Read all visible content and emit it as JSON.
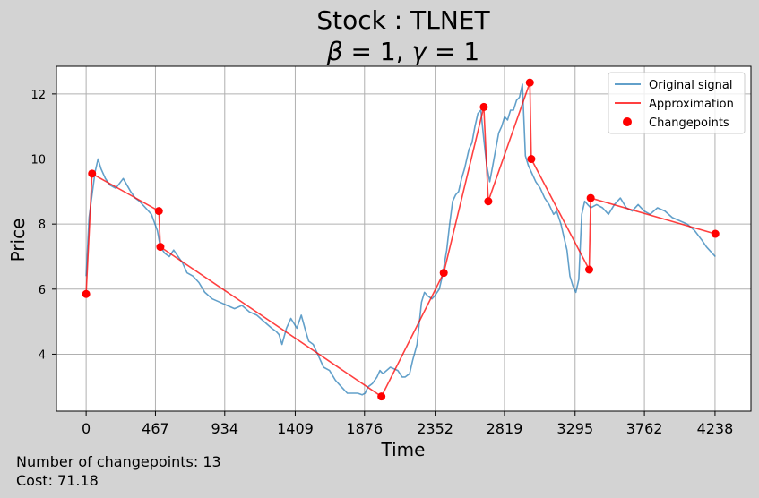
{
  "chart_data": {
    "type": "line",
    "title": "Stock : TLNET",
    "subtitle_beta": "1",
    "subtitle_gamma": "1",
    "xlabel": "Time",
    "ylabel": "Price",
    "xlim": [
      -200,
      4480
    ],
    "ylim": [
      2.25,
      12.85
    ],
    "xticks": [
      0,
      467,
      934,
      1409,
      1876,
      2352,
      2819,
      3295,
      3762,
      4238
    ],
    "yticks": [
      4,
      6,
      8,
      10,
      12
    ],
    "grid": true,
    "legend_position": "upper-right",
    "legend": [
      "Original signal",
      "Approximation",
      "Changepoints"
    ],
    "colors": {
      "signal": "#1f77b4",
      "approximation": "#ff0000",
      "changepoints": "#ff0000",
      "background": "#d3d3d3",
      "plot_background": "#ffffff",
      "grid": "#b0b0b0"
    },
    "series": [
      {
        "name": "Original signal",
        "x": [
          0,
          20,
          40,
          60,
          80,
          100,
          130,
          160,
          200,
          250,
          300,
          330,
          360,
          400,
          440,
          480,
          500,
          530,
          560,
          590,
          620,
          650,
          680,
          720,
          760,
          800,
          850,
          900,
          950,
          1000,
          1050,
          1100,
          1150,
          1200,
          1250,
          1280,
          1300,
          1320,
          1350,
          1380,
          1420,
          1450,
          1480,
          1500,
          1530,
          1560,
          1600,
          1640,
          1680,
          1720,
          1760,
          1800,
          1830,
          1860,
          1880,
          1900,
          1930,
          1960,
          1980,
          2000,
          2050,
          2100,
          2130,
          2150,
          2180,
          2200,
          2230,
          2260,
          2280,
          2300,
          2330,
          2350,
          2380,
          2400,
          2430,
          2450,
          2470,
          2490,
          2510,
          2530,
          2550,
          2580,
          2600,
          2620,
          2640,
          2660,
          2680,
          2700,
          2720,
          2740,
          2760,
          2780,
          2800,
          2820,
          2840,
          2860,
          2880,
          2900,
          2920,
          2940,
          2960,
          2980,
          3000,
          3030,
          3060,
          3090,
          3120,
          3150,
          3170,
          3200,
          3220,
          3240,
          3260,
          3280,
          3300,
          3320,
          3340,
          3360,
          3380,
          3400,
          3440,
          3480,
          3520,
          3560,
          3600,
          3640,
          3680,
          3720,
          3760,
          3800,
          3850,
          3900,
          3950,
          4000,
          4050,
          4100,
          4150,
          4180,
          4200,
          4220,
          4240
        ],
        "values": [
          6.4,
          8.2,
          8.9,
          9.6,
          10.0,
          9.7,
          9.4,
          9.2,
          9.1,
          9.4,
          9.0,
          8.8,
          8.7,
          8.5,
          8.3,
          7.8,
          7.3,
          7.1,
          7.0,
          7.2,
          7.0,
          6.8,
          6.5,
          6.4,
          6.2,
          5.9,
          5.7,
          5.6,
          5.5,
          5.4,
          5.5,
          5.3,
          5.2,
          5.0,
          4.8,
          4.7,
          4.6,
          4.3,
          4.8,
          5.1,
          4.8,
          5.2,
          4.7,
          4.4,
          4.3,
          4.0,
          3.6,
          3.5,
          3.2,
          3.0,
          2.8,
          2.8,
          2.8,
          2.75,
          2.8,
          3.0,
          3.1,
          3.3,
          3.5,
          3.4,
          3.6,
          3.5,
          3.3,
          3.3,
          3.4,
          3.8,
          4.3,
          5.6,
          5.9,
          5.8,
          5.7,
          5.8,
          6.0,
          6.4,
          7.2,
          8.0,
          8.7,
          8.9,
          9.0,
          9.4,
          9.7,
          10.3,
          10.5,
          11.0,
          11.4,
          11.5,
          10.6,
          9.8,
          9.3,
          9.8,
          10.3,
          10.8,
          11.0,
          11.3,
          11.2,
          11.5,
          11.5,
          11.8,
          11.9,
          12.3,
          10.1,
          9.8,
          9.6,
          9.3,
          9.1,
          8.8,
          8.6,
          8.3,
          8.4,
          8.0,
          7.6,
          7.2,
          6.4,
          6.1,
          5.9,
          6.3,
          8.3,
          8.7,
          8.6,
          8.5,
          8.6,
          8.5,
          8.3,
          8.6,
          8.8,
          8.5,
          8.4,
          8.6,
          8.4,
          8.3,
          8.5,
          8.4,
          8.2,
          8.1,
          8.0,
          7.8,
          7.5,
          7.3,
          7.2,
          7.1,
          7.0
        ]
      },
      {
        "name": "Approximation",
        "x": [
          0,
          40,
          490,
          500,
          1990,
          2410,
          2680,
          2710,
          2990,
          3000,
          3390,
          3400,
          4240
        ],
        "values": [
          5.85,
          9.55,
          8.4,
          7.3,
          2.7,
          6.5,
          11.6,
          8.7,
          12.35,
          10.0,
          6.6,
          8.8,
          7.7
        ]
      },
      {
        "name": "Changepoints",
        "x": [
          0,
          40,
          490,
          500,
          1990,
          2410,
          2680,
          2710,
          2990,
          3000,
          3390,
          3400,
          4240
        ],
        "values": [
          5.85,
          9.55,
          8.4,
          7.3,
          2.7,
          6.5,
          11.6,
          8.7,
          12.35,
          10.0,
          6.6,
          8.8,
          7.7
        ]
      }
    ]
  },
  "footer": {
    "changepoints_text": "Number of changepoints: 13",
    "cost_text": "Cost: 71.18"
  }
}
